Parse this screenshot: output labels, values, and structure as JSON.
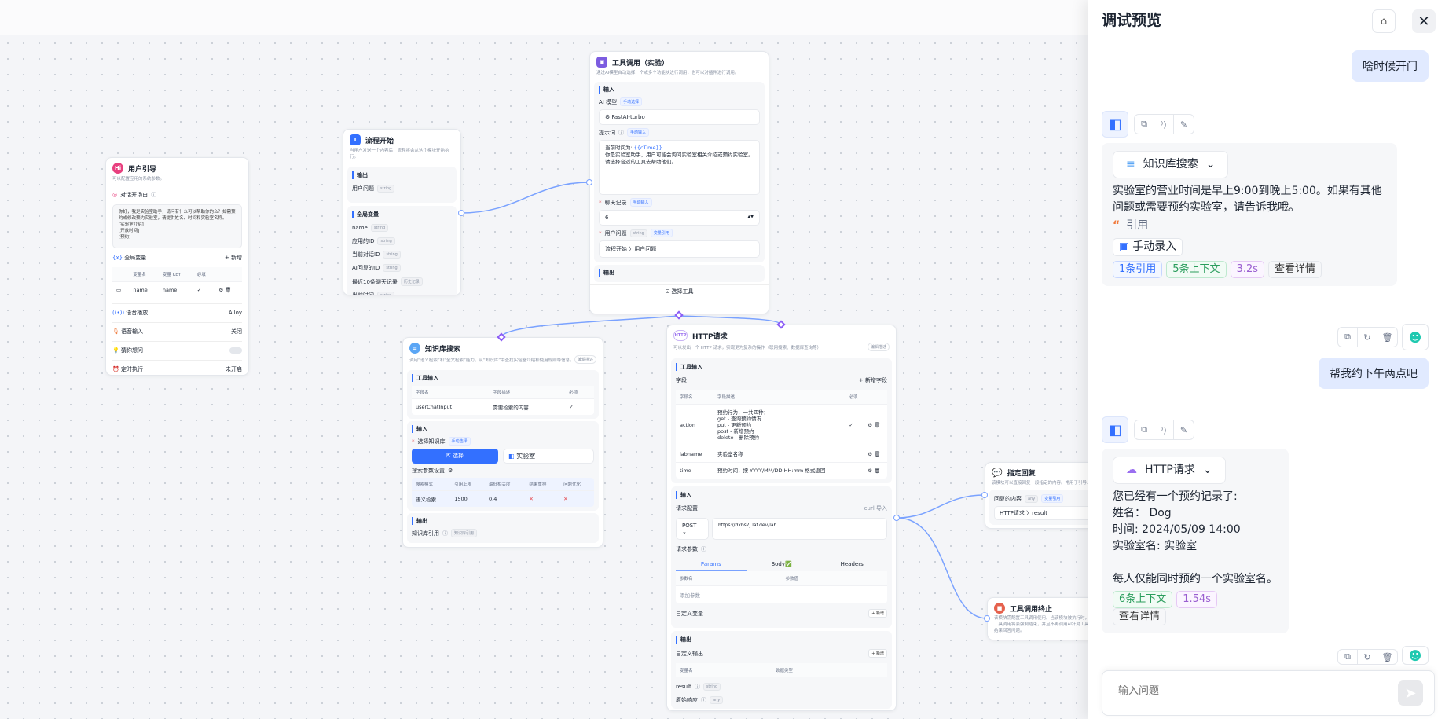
{
  "panel": {
    "title": "调试预览",
    "clear_icon": "broom-icon",
    "close_icon": "close-icon",
    "messages": [
      {
        "role": "user",
        "text": "啥时候开门"
      },
      {
        "role": "ai",
        "module": "知识库搜索",
        "lines": [
          "实验室的营业时间是早上9:00到晚上5:00。如果有其他问题或需要预约实验室，请告诉我哦。"
        ],
        "quote_label": "引用",
        "source": "手动录入",
        "pills": [
          "1条引用",
          "5条上下文",
          "3.2s",
          "查看详情"
        ]
      },
      {
        "role": "user",
        "text": "帮我约下午两点吧"
      },
      {
        "role": "ai",
        "module": "HTTP请求",
        "lines": [
          "您已经有一个预约记录了:",
          "姓名： Dog",
          "时间: 2024/05/09 14:00",
          "实验室名: 实验室",
          "",
          "每人仅能同时预约一个实验室名。"
        ],
        "pills": [
          "6条上下文",
          "1.54s",
          "查看详情"
        ]
      }
    ],
    "input_placeholder": "输入问题"
  },
  "nodes": {
    "guide": {
      "title": "用户引导",
      "desc": "可以配置应用的系统参数。",
      "opening_label": "对话开场白",
      "opening_text": [
        "你好，我是实验室助手，请问有什么可以帮助你的么？如需预约或修改预约实验室，请提供姓名、时间和实验室名称。",
        "[实验室介绍]",
        "[开放时间]",
        "[预约]"
      ],
      "vars_label": "全局变量",
      "add": "+ 新增",
      "var_headers": [
        "变量名",
        "变量 KEY",
        "必填"
      ],
      "var_row": [
        "name",
        "name"
      ],
      "tts_label": "语音播放",
      "tts_value": "Alloy",
      "stt_label": "语音输入",
      "stt_value": "关闭",
      "guess_label": "猜你想问",
      "timer_label": "定时执行",
      "timer_value": "未开启"
    },
    "start": {
      "title": "流程开始",
      "desc": "当用户发送一个内容后，流程将会从这个模块开始执行。",
      "output_label": "输出",
      "output_item": "用户问题",
      "global_label": "全局变量",
      "globals": [
        [
          "name",
          "string"
        ],
        [
          "应用的ID",
          "string"
        ],
        [
          "当前对话ID",
          "string"
        ],
        [
          "AI回复的ID",
          "string"
        ],
        [
          "最近10条聊天记录",
          "历史记录"
        ],
        [
          "当前时间",
          "string"
        ]
      ],
      "string": "string"
    },
    "tool": {
      "title": "工具调用（实验）",
      "desc": "通过AI模型自动选择一个或多个功能块进行调用，也可以对插件进行调用。",
      "input_label": "输入",
      "model_label": "AI 模型",
      "manual_select": "手动选择",
      "model": "FastAI-turbo",
      "prompt_label": "提示词",
      "manual_input": "手动输入",
      "prompt_line1": "当前时间为: ",
      "prompt_var": "{{cTime}}",
      "prompt_rest": [
        "你是实验室助手，用户可能会询问实验室相关介绍或预约实验室。",
        "请选择合适的工具去帮助他们。"
      ],
      "history_label": "聊天记录",
      "history_value": "6",
      "question_label": "用户问题",
      "var_ref": "变量引用",
      "question_ref": "流程开始 〉用户问题",
      "output_label": "输出",
      "select_tool": "选择工具"
    },
    "kb": {
      "title": "知识库搜索",
      "desc": "调用“语义检索”和“全文检索”能力，从“知识库”中查找实验室介绍和使用规则等信息。",
      "edit_desc": "编辑描述",
      "tool_input": "工具输入",
      "headers": [
        "字段名",
        "字段描述",
        "必须"
      ],
      "row": [
        "userChatInput",
        "需要检索的内容"
      ],
      "input_label": "输入",
      "select_kb": "选择知识库",
      "manual_select": "手动选择",
      "select_btn": "选择",
      "kb_name": "实验室",
      "search_settings": "搜索参数设置",
      "param_headers": [
        "搜索模式",
        "引用上限",
        "最低相关度",
        "结果重排",
        "问题优化"
      ],
      "param_values": [
        "语义检索",
        "1500",
        "0.4"
      ],
      "output_label": "输出",
      "kb_ref": "知识库引用"
    },
    "http": {
      "title": "HTTP请求",
      "desc": "可以发出一个 HTTP 请求，实现更为复杂的操作（联网搜索、数据库查询等）",
      "edit_desc": "编辑描述",
      "tool_input": "工具输入",
      "fields_label": "字段",
      "add_field": "+ 新增字段",
      "headers": [
        "字段名",
        "字段描述",
        "必须"
      ],
      "fields": [
        {
          "name": "action",
          "desc": [
            "预约行为，一共四种：",
            "get - 查询预约情况",
            "put - 更新预约",
            "post - 新增预约",
            "delete - 删除预约"
          ],
          "required": true
        },
        {
          "name": "labname",
          "desc": [
            "实验室名称"
          ],
          "required": false
        },
        {
          "name": "time",
          "desc": [
            "预约时间，按 YYYY/MM/DD HH:mm 格式返回"
          ],
          "required": false
        }
      ],
      "input_label": "输入",
      "req_config": "请求配置",
      "curl": "curl 导入",
      "method": "POST",
      "url": "https://dxbs7j.laf.dev/lab",
      "req_params": "请求参数",
      "tabs": [
        "Params",
        "Body✅",
        "Headers"
      ],
      "param_headers": [
        "参数名",
        "参数值"
      ],
      "add_param": "添加参数",
      "custom_var": "自定义变量",
      "add": "+ 新增",
      "output_label": "输出",
      "custom_out": "自定义输出",
      "out_headers": [
        "变量名",
        "数据类型"
      ],
      "outputs": [
        [
          "result",
          "string"
        ],
        [
          "原始响应",
          "any"
        ]
      ]
    },
    "reply": {
      "title": "指定回复",
      "desc": "该模块可以直接回复一段指定的内容。常用于引导、提示",
      "content_label": "回复的内容",
      "any": "any",
      "var_ref": "变量引用",
      "ref": "HTTP请求 〉result"
    },
    "stop": {
      "title": "工具调用终止",
      "desc": [
        "该模块需配置工具调用使用。当该模块被执行时，",
        "工具调用将会强制结束，并且不再调用AI针对工具",
        "结果回答问题。"
      ]
    }
  },
  "colors": {
    "accent": "#3370ff",
    "user_bubble": "#e1eaff",
    "edge": "#7aa2ff"
  }
}
